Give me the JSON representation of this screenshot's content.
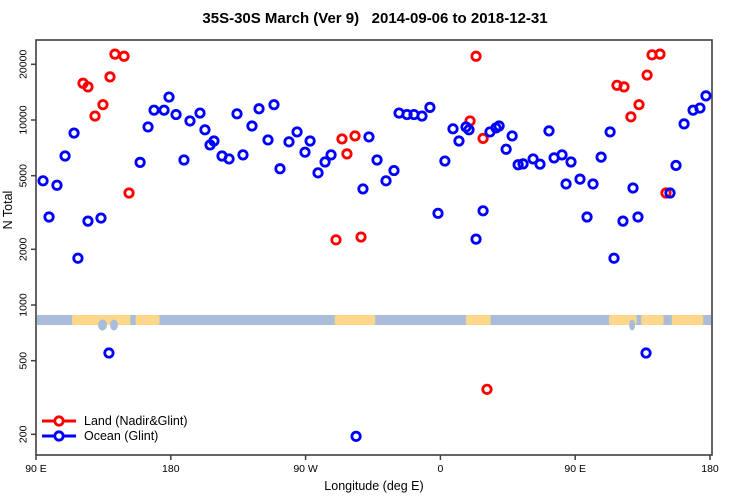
{
  "chart_data": {
    "type": "scatter",
    "title": "35S-30S March (Ver 9)   2014-09-06 to 2018-12-31",
    "xlabel": "Longitude (deg E)",
    "ylabel": "N Total",
    "x_axis": {
      "ticks_deg": [
        90,
        180,
        270,
        360,
        450,
        540
      ],
      "tick_labels": [
        "90 E",
        "180",
        "90 W",
        "0",
        "90 E",
        "180"
      ],
      "range_deg": [
        90,
        543
      ]
    },
    "y_axis": {
      "scale": "log",
      "ticks": [
        200,
        500,
        1000,
        2000,
        5000,
        10000,
        20000
      ],
      "tick_labels": [
        "200",
        "500",
        "1000",
        "2000",
        "5000",
        "10000",
        "20000"
      ],
      "range": [
        150,
        27000
      ]
    },
    "legend": {
      "position": "bottom-left",
      "entries": [
        {
          "label": "Land (Nadir&Glint)",
          "color": "#ff0000"
        },
        {
          "label": "Ocean (Glint)",
          "color": "#0000ff"
        }
      ]
    },
    "map_band": {
      "description": "coastline strip at N=about 830",
      "ocean_color": "#a9bdda",
      "land_color": "#ffd78a",
      "land_segments_deg": [
        [
          114,
          153
        ],
        [
          156.5,
          172.5
        ],
        [
          289.5,
          316.5
        ],
        [
          377,
          393.5
        ],
        [
          472.5,
          491
        ],
        [
          494,
          509
        ],
        [
          514.5,
          535.5
        ]
      ],
      "coast_notches_deg": [
        [
          131.4,
          137.4
        ],
        [
          139.4,
          144.7
        ],
        [
          486,
          490
        ]
      ]
    },
    "series": [
      {
        "name": "Land (Nadir&Glint)",
        "color": "#ff0000",
        "points": [
          [
            121.4,
            15800
          ],
          [
            124.7,
            15100
          ],
          [
            129.4,
            10500
          ],
          [
            134.7,
            12100
          ],
          [
            139.4,
            17100
          ],
          [
            142.7,
            22700
          ],
          [
            148.8,
            22100
          ],
          [
            152.1,
            4030
          ],
          [
            290.3,
            2250
          ],
          [
            294.3,
            7900
          ],
          [
            297.6,
            6560
          ],
          [
            303.0,
            8200
          ],
          [
            307.0,
            2330
          ],
          [
            379.8,
            9880
          ],
          [
            383.8,
            22100
          ],
          [
            388.5,
            7950
          ],
          [
            391.1,
            350
          ],
          [
            477.9,
            15400
          ],
          [
            482.6,
            15100
          ],
          [
            487.2,
            10400
          ],
          [
            492.6,
            12100
          ],
          [
            498.0,
            17500
          ],
          [
            501.3,
            22500
          ],
          [
            506.6,
            22700
          ],
          [
            510.6,
            4030
          ]
        ]
      },
      {
        "name": "Ocean (Glint)",
        "color": "#0000ff",
        "points": [
          [
            94.7,
            4690
          ],
          [
            98.7,
            2990
          ],
          [
            104.0,
            4440
          ],
          [
            109.4,
            6390
          ],
          [
            115.4,
            8500
          ],
          [
            118.0,
            1790
          ],
          [
            124.7,
            2840
          ],
          [
            133.4,
            2950
          ],
          [
            138.7,
            550
          ],
          [
            159.5,
            5900
          ],
          [
            164.8,
            9170
          ],
          [
            168.8,
            11300
          ],
          [
            175.5,
            11300
          ],
          [
            178.8,
            13300
          ],
          [
            183.5,
            10700
          ],
          [
            188.8,
            6080
          ],
          [
            192.8,
            9880
          ],
          [
            199.5,
            10900
          ],
          [
            202.8,
            8850
          ],
          [
            206.2,
            7330
          ],
          [
            208.8,
            7700
          ],
          [
            214.2,
            6390
          ],
          [
            218.9,
            6160
          ],
          [
            224.2,
            10800
          ],
          [
            228.2,
            6480
          ],
          [
            234.2,
            9280
          ],
          [
            238.9,
            11500
          ],
          [
            244.9,
            7800
          ],
          [
            248.9,
            12100
          ],
          [
            252.9,
            5450
          ],
          [
            258.9,
            7620
          ],
          [
            264.3,
            8620
          ],
          [
            269.6,
            6700
          ],
          [
            273.0,
            7700
          ],
          [
            278.3,
            5180
          ],
          [
            283.0,
            5930
          ],
          [
            287.0,
            6480
          ],
          [
            303.7,
            195
          ],
          [
            308.3,
            4240
          ],
          [
            312.3,
            8100
          ],
          [
            317.7,
            6080
          ],
          [
            323.7,
            4690
          ],
          [
            329.0,
            5330
          ],
          [
            332.4,
            10900
          ],
          [
            337.7,
            10700
          ],
          [
            342.4,
            10700
          ],
          [
            347.7,
            10500
          ],
          [
            353.0,
            11700
          ],
          [
            358.4,
            3130
          ],
          [
            363.0,
            6000
          ],
          [
            368.4,
            8960
          ],
          [
            372.4,
            7700
          ],
          [
            377.1,
            9170
          ],
          [
            379.1,
            8850
          ],
          [
            383.8,
            2270
          ],
          [
            388.5,
            3230
          ],
          [
            393.1,
            8620
          ],
          [
            397.1,
            9060
          ],
          [
            399.2,
            9280
          ],
          [
            403.9,
            6950
          ],
          [
            407.9,
            8200
          ],
          [
            411.9,
            5730
          ],
          [
            415.2,
            5790
          ],
          [
            421.9,
            6160
          ],
          [
            426.5,
            5770
          ],
          [
            432.5,
            8730
          ],
          [
            435.9,
            6240
          ],
          [
            441.2,
            6480
          ],
          [
            443.9,
            4510
          ],
          [
            447.2,
            5930
          ],
          [
            453.2,
            4790
          ],
          [
            457.9,
            2990
          ],
          [
            461.9,
            4510
          ],
          [
            467.3,
            6300
          ],
          [
            473.3,
            8620
          ],
          [
            475.9,
            1790
          ],
          [
            481.9,
            2840
          ],
          [
            488.6,
            4290
          ],
          [
            491.9,
            2990
          ],
          [
            497.3,
            550
          ],
          [
            513.3,
            4030
          ],
          [
            517.3,
            5680
          ],
          [
            522.7,
            9530
          ],
          [
            528.7,
            11300
          ],
          [
            533.3,
            11600
          ],
          [
            537.3,
            13500
          ]
        ]
      }
    ]
  }
}
